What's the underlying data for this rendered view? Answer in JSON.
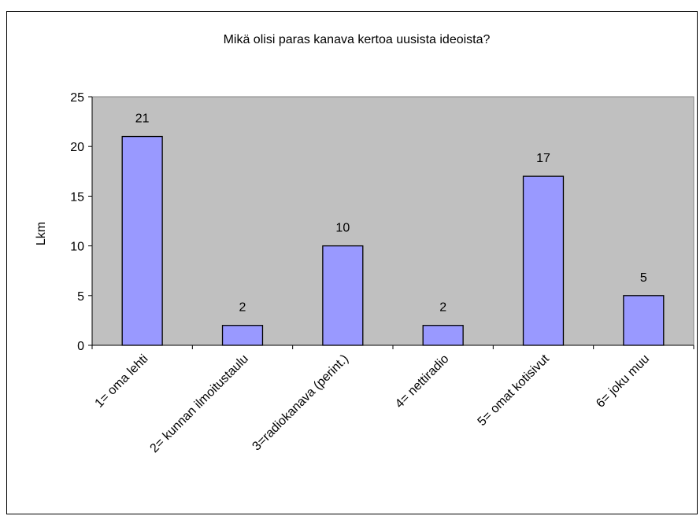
{
  "chart_data": {
    "type": "bar",
    "title": "Mikä olisi paras kanava kertoa uusista ideoista?",
    "xlabel": "",
    "ylabel": "Lkm",
    "categories": [
      "1= oma lehti",
      "2= kunnan ilmoitustaulu",
      "3=radiokanava (perint.)",
      "4= nettiradio",
      "5= omat kotisivut",
      "6= joku muu"
    ],
    "values": [
      21,
      2,
      10,
      2,
      17,
      5
    ],
    "data_labels": [
      "21",
      "2",
      "10",
      "2",
      "17",
      "5"
    ],
    "ylim": [
      0,
      25
    ],
    "yticks": [
      0,
      5,
      10,
      15,
      20,
      25
    ],
    "grid": false,
    "legend": "none",
    "colors": {
      "plot_background": "#c0c0c0",
      "bar_fill": "#9999ff",
      "bar_stroke": "#000000",
      "axis": "#000000"
    }
  }
}
